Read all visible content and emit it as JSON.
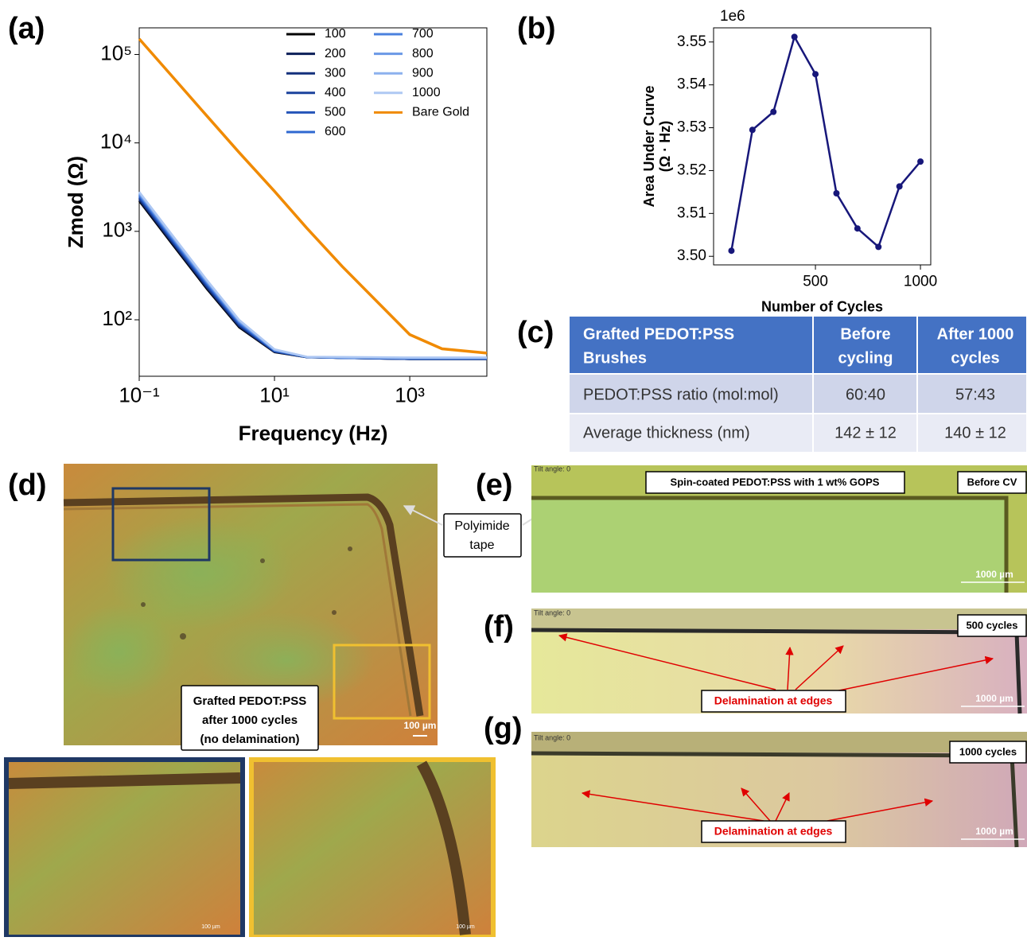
{
  "chart_data": [
    {
      "type": "line",
      "panel": "(a)",
      "xlabel": "Frequency (Hz)",
      "ylabel": "Zmod (Ω)",
      "xscale": "log",
      "yscale": "log",
      "legend": "upper right",
      "x": [
        0.1,
        0.3,
        1,
        3,
        10,
        30,
        100,
        1000,
        3000,
        13800
      ],
      "xlim": [
        0.1,
        13800
      ],
      "ylim": [
        23,
        200000
      ],
      "xticks": [
        {
          "value": 0.1,
          "label": "10⁻¹"
        },
        {
          "value": 10,
          "label": "10¹"
        },
        {
          "value": 1000,
          "label": "10³"
        }
      ],
      "yticks": [
        {
          "value": 100,
          "label": "10²"
        },
        {
          "value": 1000,
          "label": "10³"
        },
        {
          "value": 10000,
          "label": "10⁴"
        },
        {
          "value": 100000,
          "label": "10⁵"
        }
      ],
      "series": [
        {
          "name": "100",
          "color": "#000000",
          "values": [
            2200,
            733,
            223,
            82,
            43,
            37.7,
            37,
            36,
            36,
            36
          ]
        },
        {
          "name": "200",
          "color": "#0b1e58",
          "values": [
            2270,
            757,
            230,
            84,
            43.4,
            37.7,
            37,
            36,
            36,
            36
          ]
        },
        {
          "name": "300",
          "color": "#13307c",
          "values": [
            2330,
            777,
            236,
            86,
            43.7,
            37.8,
            37,
            36,
            36,
            36
          ]
        },
        {
          "name": "400",
          "color": "#1b429c",
          "values": [
            2400,
            800,
            243,
            88,
            44,
            37.8,
            37,
            36,
            36,
            36
          ]
        },
        {
          "name": "500",
          "color": "#2454b8",
          "values": [
            2470,
            823,
            250,
            90,
            44.5,
            37.9,
            37,
            36.5,
            36.5,
            36.5
          ]
        },
        {
          "name": "600",
          "color": "#2f68d0",
          "values": [
            2530,
            843,
            256,
            92,
            44.8,
            37.9,
            37,
            36.5,
            36.5,
            36.5
          ]
        },
        {
          "name": "700",
          "color": "#4a80de",
          "values": [
            2600,
            867,
            263,
            94,
            45.2,
            38,
            37.5,
            37,
            37,
            37
          ]
        },
        {
          "name": "800",
          "color": "#6a98e6",
          "values": [
            2670,
            890,
            270,
            96,
            45.6,
            38,
            37.5,
            37,
            37,
            37
          ]
        },
        {
          "name": "900",
          "color": "#8cb1ee",
          "values": [
            2730,
            910,
            276,
            98,
            46,
            38.1,
            37.5,
            37,
            37,
            37
          ]
        },
        {
          "name": "1000",
          "color": "#aec8f3",
          "values": [
            2800,
            933,
            282,
            100,
            46.4,
            38.2,
            38,
            37.5,
            37.5,
            37.5
          ]
        },
        {
          "name": "Bare Gold",
          "color": "#f08a00",
          "values": [
            150000,
            57700,
            20200,
            7800,
            2840,
            1090,
            402,
            68,
            47,
            42
          ]
        }
      ]
    },
    {
      "type": "line",
      "panel": "(b)",
      "xlabel": "Number of Cycles",
      "ylabel": [
        "Area Under Curve",
        "(Ω · Hz)"
      ],
      "offset_label": "1e6",
      "color": "#17177a",
      "x": [
        100,
        200,
        300,
        400,
        500,
        600,
        700,
        800,
        900,
        1000
      ],
      "xlim": [
        15,
        1049
      ],
      "ylim": [
        3.498,
        3.5533
      ],
      "xticks": [
        500,
        1000
      ],
      "yticks": [
        {
          "value": 3.5,
          "label": "3.50"
        },
        3.51,
        3.52,
        3.53,
        3.54,
        3.55
      ],
      "series": [
        {
          "name": null,
          "color": "#17177a",
          "values": [
            3.5013,
            3.5295,
            3.5337,
            3.5512,
            3.5425,
            3.5147,
            3.5065,
            3.5022,
            3.5163,
            3.5221
          ]
        }
      ]
    }
  ],
  "table": {
    "panel": "(c)",
    "header": [
      [
        "Grafted PEDOT:PSS",
        "Brushes"
      ],
      [
        "Before",
        "cycling"
      ],
      [
        "After 1000",
        "cycles"
      ]
    ],
    "rows": [
      [
        "PEDOT:PSS ratio (mol:mol)",
        "60:40",
        "57:43"
      ],
      [
        "Average thickness (nm)",
        "142 ± 12",
        "140 ± 12"
      ]
    ]
  },
  "panels": {
    "d": {
      "label": "(d)",
      "callout": [
        "Grafted PEDOT:PSS",
        "after 1000 cycles",
        "(no delamination)"
      ],
      "scale": "100 µm",
      "inset_scale": "100 µm",
      "pointer": [
        "Polyimide",
        "tape"
      ]
    },
    "e": {
      "label": "(e)",
      "tilt": "Tilt angle: 0",
      "note": "Spin-coated PEDOT:PSS with 1 wt% GOPS",
      "state": "Before CV",
      "scale": "1000 µm"
    },
    "f": {
      "label": "(f)",
      "tilt": "Tilt angle: 0",
      "state": "500 cycles",
      "note": "Delamination at edges",
      "scale": "1000 µm"
    },
    "g": {
      "label": "(g)",
      "tilt": "Tilt angle: 0",
      "state": "1000 cycles",
      "note": "Delamination at edges",
      "scale": "1000 µm"
    }
  }
}
